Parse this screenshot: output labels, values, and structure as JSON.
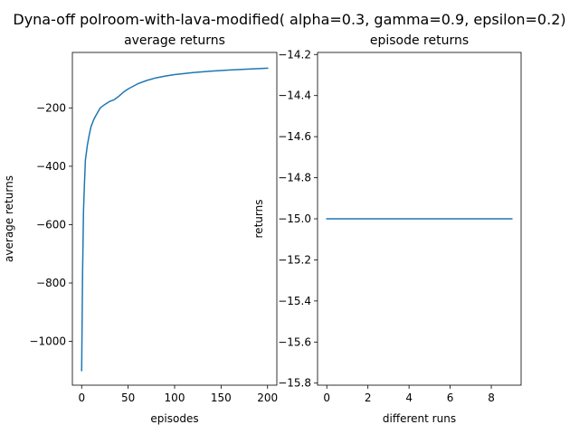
{
  "figure": {
    "suptitle": "Dyna-off polroom-with-lava-modified( alpha=0.3, gamma=0.9, epsilon=0.2)"
  },
  "chart_data": [
    {
      "type": "line",
      "title": "average returns",
      "xlabel": "episodes",
      "ylabel": "average returns",
      "xlim": [
        -10,
        210
      ],
      "ylim": [
        -1150,
        -10
      ],
      "xticks": [
        0,
        50,
        100,
        150,
        200
      ],
      "xtick_labels": [
        "0",
        "50",
        "100",
        "150",
        "200"
      ],
      "yticks": [
        -1000,
        -800,
        -600,
        -400,
        -200
      ],
      "ytick_labels": [
        "−1000",
        "−800",
        "−600",
        "−400",
        "−200"
      ],
      "grid": false,
      "color": "#1f77b4",
      "series": [
        {
          "x": [
            0,
            1,
            2,
            3,
            4,
            6,
            8,
            10,
            13,
            16,
            20,
            25,
            30,
            35,
            40,
            45,
            50,
            60,
            70,
            80,
            90,
            100,
            120,
            140,
            160,
            180,
            200
          ],
          "values": [
            -1100,
            -760,
            -550,
            -460,
            -380,
            -330,
            -295,
            -265,
            -240,
            -222,
            -200,
            -188,
            -178,
            -172,
            -160,
            -146,
            -135,
            -118,
            -106,
            -97,
            -91,
            -86,
            -79,
            -74,
            -70,
            -67,
            -64
          ]
        }
      ]
    },
    {
      "type": "line",
      "title": "episode returns",
      "xlabel": "different runs",
      "ylabel": "returns",
      "xlim": [
        -0.45,
        9.45
      ],
      "ylim": [
        -15.81,
        -14.19
      ],
      "xticks": [
        0,
        2,
        4,
        6,
        8
      ],
      "xtick_labels": [
        "0",
        "2",
        "4",
        "6",
        "8"
      ],
      "yticks": [
        -14.2,
        -14.4,
        -14.6,
        -14.8,
        -15.0,
        -15.2,
        -15.4,
        -15.6,
        -15.8
      ],
      "ytick_labels": [
        "−14.2",
        "−14.4",
        "−14.6",
        "−14.8",
        "−15.0",
        "−15.2",
        "−15.4",
        "−15.6",
        "−15.8"
      ],
      "grid": false,
      "color": "#1f77b4",
      "series": [
        {
          "x": [
            0,
            1,
            2,
            3,
            4,
            5,
            6,
            7,
            8,
            9
          ],
          "values": [
            -15,
            -15,
            -15,
            -15,
            -15,
            -15,
            -15,
            -15,
            -15,
            -15
          ]
        }
      ]
    }
  ]
}
